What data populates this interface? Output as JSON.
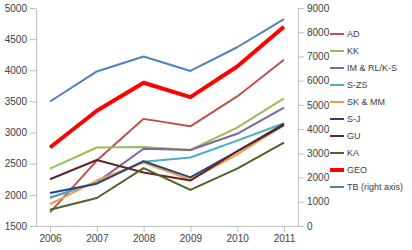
{
  "chart_data": {
    "type": "line",
    "categories": [
      "2006",
      "2007",
      "2008",
      "2009",
      "2010",
      "2011"
    ],
    "ylim": [
      1500,
      5000
    ],
    "yticks": [
      1500,
      2000,
      2500,
      3000,
      3500,
      4000,
      4500,
      5000
    ],
    "y2lim": [
      0,
      9000
    ],
    "y2ticks": [
      0,
      1000,
      2000,
      3000,
      4000,
      5000,
      6000,
      7000,
      8000,
      9000
    ],
    "grid": false,
    "legend": "right",
    "series": [
      {
        "name": "AD",
        "color": "#c0504d",
        "values": [
          1720,
          2550,
          3220,
          3100,
          3580,
          4170
        ]
      },
      {
        "name": "KK",
        "color": "#9bbb59",
        "values": [
          2420,
          2760,
          2770,
          2720,
          3080,
          3550
        ]
      },
      {
        "name": "IM & RL/K-S",
        "color": "#8064a2",
        "values": [
          1960,
          2200,
          2740,
          2720,
          2980,
          3400
        ]
      },
      {
        "name": "S-ZS",
        "color": "#4bacc6",
        "values": [
          1950,
          2200,
          2530,
          2600,
          2870,
          3150
        ]
      },
      {
        "name": "SK & MM",
        "color": "#f79646",
        "values": [
          1850,
          2230,
          2520,
          2240,
          2650,
          3120
        ]
      },
      {
        "name": "S-J",
        "color": "#1f497d",
        "values": [
          2030,
          2180,
          2540,
          2280,
          2700,
          3120
        ]
      },
      {
        "name": "GU",
        "color": "#632523",
        "values": [
          2250,
          2560,
          2360,
          2230,
          2700,
          3140
        ]
      },
      {
        "name": "KA",
        "color": "#4f6228",
        "values": [
          1760,
          1950,
          2430,
          2080,
          2420,
          2840
        ]
      },
      {
        "name": "GEO",
        "color": "#ff0000",
        "line_style": "thick",
        "values": [
          2760,
          3350,
          3800,
          3570,
          4060,
          4700
        ]
      },
      {
        "name": "TB (right axis)",
        "color": "#4f81bd",
        "axis": "y2",
        "values": [
          5140,
          6380,
          7000,
          6400,
          7380,
          8540
        ]
      }
    ]
  }
}
